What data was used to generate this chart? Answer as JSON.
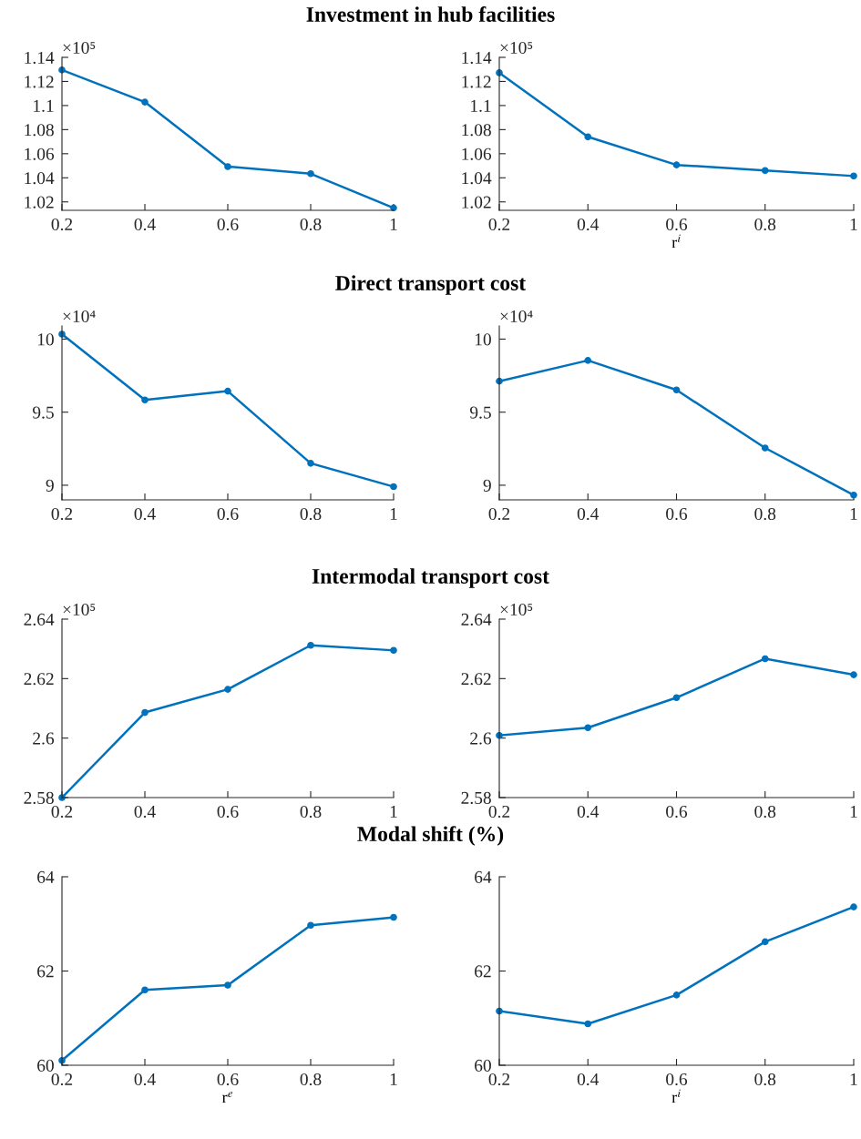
{
  "chart_data": [
    {
      "type": "line",
      "title": "Investment in hub facilities",
      "annotations": [
        "×10⁵"
      ],
      "x": [
        0.2,
        0.4,
        0.6,
        0.8,
        1
      ],
      "series": [
        {
          "color": "#0072bd",
          "values": [
            1.1295,
            1.1029,
            1.0493,
            1.0434,
            1.015
          ]
        }
      ],
      "xlim": [
        0.2,
        1
      ],
      "xticks": [
        0.2,
        0.4,
        0.6,
        0.8,
        1
      ],
      "ylim": [
        1.013,
        1.14
      ],
      "yticks": [
        1.02,
        1.04,
        1.06,
        1.08,
        1.1,
        1.12,
        1.14
      ],
      "marker": "circle",
      "line_style": "solid",
      "grid": false
    },
    {
      "type": "line",
      "xlabel": "r$^{i}$",
      "annotations": [
        "×10⁵"
      ],
      "x": [
        0.2,
        0.4,
        0.6,
        0.8,
        1
      ],
      "series": [
        {
          "color": "#0072bd",
          "values": [
            1.1272,
            1.074,
            1.0507,
            1.0461,
            1.0415
          ]
        }
      ],
      "xlim": [
        0.2,
        1
      ],
      "xticks": [
        0.2,
        0.4,
        0.6,
        0.8,
        1
      ],
      "ylim": [
        1.013,
        1.14
      ],
      "yticks": [
        1.02,
        1.04,
        1.06,
        1.08,
        1.1,
        1.12,
        1.14
      ],
      "marker": "circle",
      "line_style": "solid",
      "grid": false
    },
    {
      "type": "line",
      "title": "Direct transport cost",
      "annotations": [
        "×10⁴"
      ],
      "x": [
        0.2,
        0.4,
        0.6,
        0.8,
        1
      ],
      "series": [
        {
          "color": "#0072bd",
          "values": [
            10.034,
            9.584,
            9.644,
            9.15,
            8.99
          ]
        }
      ],
      "xlim": [
        0.2,
        1
      ],
      "xticks": [
        0.2,
        0.4,
        0.6,
        0.8,
        1
      ],
      "ylim": [
        8.9,
        10.09
      ],
      "yticks": [
        9,
        9.5,
        10
      ],
      "marker": "circle",
      "line_style": "solid",
      "grid": false
    },
    {
      "type": "line",
      "annotations": [
        "×10⁴"
      ],
      "x": [
        0.2,
        0.4,
        0.6,
        0.8,
        1
      ],
      "series": [
        {
          "color": "#0072bd",
          "values": [
            9.712,
            9.854,
            9.652,
            9.255,
            8.933
          ]
        }
      ],
      "xlim": [
        0.2,
        1
      ],
      "xticks": [
        0.2,
        0.4,
        0.6,
        0.8,
        1
      ],
      "ylim": [
        8.9,
        10.09
      ],
      "yticks": [
        9,
        9.5,
        10
      ],
      "marker": "circle",
      "line_style": "solid",
      "grid": false
    },
    {
      "type": "line",
      "title": "Intermodal transport cost",
      "annotations": [
        "×10⁵"
      ],
      "x": [
        0.2,
        0.4,
        0.6,
        0.8,
        1
      ],
      "series": [
        {
          "color": "#0072bd",
          "values": [
            2.58,
            2.6086,
            2.6164,
            2.6312,
            2.6295
          ]
        }
      ],
      "xlim": [
        0.2,
        1
      ],
      "xticks": [
        0.2,
        0.4,
        0.6,
        0.8,
        1
      ],
      "ylim": [
        2.58,
        2.64
      ],
      "yticks": [
        2.58,
        2.6,
        2.62,
        2.64
      ],
      "marker": "circle",
      "line_style": "solid",
      "grid": false
    },
    {
      "type": "line",
      "annotations": [
        "×10⁵"
      ],
      "x": [
        0.2,
        0.4,
        0.6,
        0.8,
        1
      ],
      "series": [
        {
          "color": "#0072bd",
          "values": [
            2.6009,
            2.6035,
            2.6136,
            2.6267,
            2.6213
          ]
        }
      ],
      "xlim": [
        0.2,
        1
      ],
      "xticks": [
        0.2,
        0.4,
        0.6,
        0.8,
        1
      ],
      "ylim": [
        2.58,
        2.64
      ],
      "yticks": [
        2.58,
        2.6,
        2.62,
        2.64
      ],
      "marker": "circle",
      "line_style": "solid",
      "grid": false
    },
    {
      "type": "line",
      "title": "Modal shift (%)",
      "xlabel": "r$^{e}$",
      "x": [
        0.2,
        0.4,
        0.6,
        0.8,
        1
      ],
      "series": [
        {
          "color": "#0072bd",
          "values": [
            60.1,
            61.6,
            61.7,
            62.97,
            63.14
          ]
        }
      ],
      "xlim": [
        0.2,
        1
      ],
      "xticks": [
        0.2,
        0.4,
        0.6,
        0.8,
        1
      ],
      "ylim": [
        60,
        64
      ],
      "yticks": [
        60,
        62,
        64
      ],
      "marker": "circle",
      "line_style": "solid",
      "grid": false
    },
    {
      "type": "line",
      "xlabel": "r$^{i}$",
      "x": [
        0.2,
        0.4,
        0.6,
        0.8,
        1
      ],
      "series": [
        {
          "color": "#0072bd",
          "values": [
            61.15,
            60.88,
            61.49,
            62.62,
            63.36
          ]
        }
      ],
      "xlim": [
        0.2,
        1
      ],
      "xticks": [
        0.2,
        0.4,
        0.6,
        0.8,
        1
      ],
      "ylim": [
        60,
        64
      ],
      "yticks": [
        60,
        62,
        64
      ],
      "marker": "circle",
      "line_style": "solid",
      "grid": false
    }
  ]
}
